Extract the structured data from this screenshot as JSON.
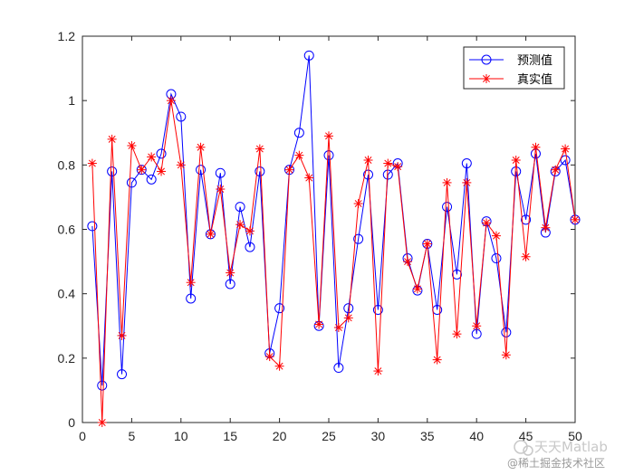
{
  "chart_data": {
    "type": "line",
    "title": "",
    "xlabel": "",
    "ylabel": "",
    "xlim": [
      0,
      50
    ],
    "ylim": [
      0,
      1.2
    ],
    "xticks": [
      "0",
      "5",
      "10",
      "15",
      "20",
      "25",
      "30",
      "35",
      "40",
      "45",
      "50"
    ],
    "yticks": [
      "0",
      "0.2",
      "0.4",
      "0.6",
      "0.8",
      "1",
      "1.2"
    ],
    "grid": false,
    "legend_position": "top-right",
    "x": [
      1,
      2,
      3,
      4,
      5,
      6,
      7,
      8,
      9,
      10,
      11,
      12,
      13,
      14,
      15,
      16,
      17,
      18,
      19,
      20,
      21,
      22,
      23,
      24,
      25,
      26,
      27,
      28,
      29,
      30,
      31,
      32,
      33,
      34,
      35,
      36,
      37,
      38,
      39,
      40,
      41,
      42,
      43,
      44,
      45,
      46,
      47,
      48,
      49,
      50
    ],
    "series": [
      {
        "name": "预测值",
        "color": "#0000ff",
        "marker": "circle",
        "values": [
          0.61,
          0.115,
          0.78,
          0.15,
          0.745,
          0.785,
          0.755,
          0.835,
          1.02,
          0.95,
          0.385,
          0.785,
          0.585,
          0.775,
          0.43,
          0.67,
          0.545,
          0.78,
          0.215,
          0.355,
          0.785,
          0.9,
          1.14,
          0.3,
          0.83,
          0.17,
          0.355,
          0.57,
          0.77,
          0.35,
          0.77,
          0.805,
          0.51,
          0.41,
          0.555,
          0.35,
          0.67,
          0.46,
          0.805,
          0.275,
          0.625,
          0.51,
          0.28,
          0.78,
          0.63,
          0.835,
          0.59,
          0.78,
          0.815,
          0.63
        ]
      },
      {
        "name": "真实值",
        "color": "#ff0000",
        "marker": "asterisk",
        "values": [
          0.805,
          0.0,
          0.88,
          0.27,
          0.86,
          0.785,
          0.825,
          0.78,
          1.0,
          0.8,
          0.435,
          0.855,
          0.585,
          0.725,
          0.465,
          0.615,
          0.595,
          0.85,
          0.205,
          0.175,
          0.785,
          0.83,
          0.76,
          0.305,
          0.89,
          0.295,
          0.325,
          0.68,
          0.815,
          0.16,
          0.805,
          0.795,
          0.5,
          0.415,
          0.555,
          0.195,
          0.745,
          0.275,
          0.745,
          0.3,
          0.62,
          0.58,
          0.21,
          0.815,
          0.515,
          0.855,
          0.605,
          0.785,
          0.85,
          0.63
        ]
      }
    ]
  },
  "watermark": {
    "line1": "天天Matlab",
    "line2": "@稀土掘金技术社区"
  }
}
